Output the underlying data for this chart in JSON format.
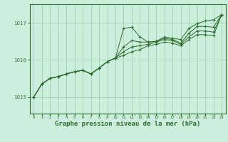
{
  "bg_color": "#cceedd",
  "grid_color": "#99ccaa",
  "line_color": "#2d6e2d",
  "xlabel": "Graphe pression niveau de la mer (hPa)",
  "xlabel_fontsize": 6.5,
  "yticks": [
    1015,
    1016,
    1017
  ],
  "xlim": [
    -0.5,
    23.5
  ],
  "ylim": [
    1014.55,
    1017.5
  ],
  "hours": [
    0,
    1,
    2,
    3,
    4,
    5,
    6,
    7,
    8,
    9,
    10,
    11,
    12,
    13,
    14,
    15,
    16,
    17,
    18,
    19,
    20,
    21,
    22,
    23
  ],
  "series": [
    [
      1015.0,
      1015.35,
      1015.5,
      1015.55,
      1015.62,
      1015.68,
      1015.72,
      1015.62,
      1015.78,
      1015.95,
      1016.05,
      1016.85,
      1016.88,
      1016.62,
      1016.48,
      1016.5,
      1016.62,
      1016.58,
      1016.55,
      1016.85,
      1016.98,
      1017.05,
      1017.08,
      1017.22
    ],
    [
      1015.0,
      1015.35,
      1015.5,
      1015.55,
      1015.62,
      1015.68,
      1015.72,
      1015.62,
      1015.78,
      1015.95,
      1016.05,
      1016.35,
      1016.52,
      1016.48,
      1016.48,
      1016.5,
      1016.58,
      1016.55,
      1016.45,
      1016.72,
      1016.9,
      1016.9,
      1016.88,
      1017.22
    ],
    [
      1015.0,
      1015.35,
      1015.5,
      1015.55,
      1015.62,
      1015.68,
      1015.72,
      1015.62,
      1015.78,
      1015.95,
      1016.05,
      1016.22,
      1016.35,
      1016.38,
      1016.42,
      1016.48,
      1016.55,
      1016.52,
      1016.42,
      1016.62,
      1016.78,
      1016.78,
      1016.75,
      1017.22
    ],
    [
      1015.0,
      1015.35,
      1015.5,
      1015.55,
      1015.62,
      1015.68,
      1015.72,
      1015.62,
      1015.78,
      1015.95,
      1016.05,
      1016.12,
      1016.22,
      1016.28,
      1016.38,
      1016.42,
      1016.48,
      1016.45,
      1016.38,
      1016.55,
      1016.68,
      1016.68,
      1016.65,
      1017.22
    ]
  ]
}
